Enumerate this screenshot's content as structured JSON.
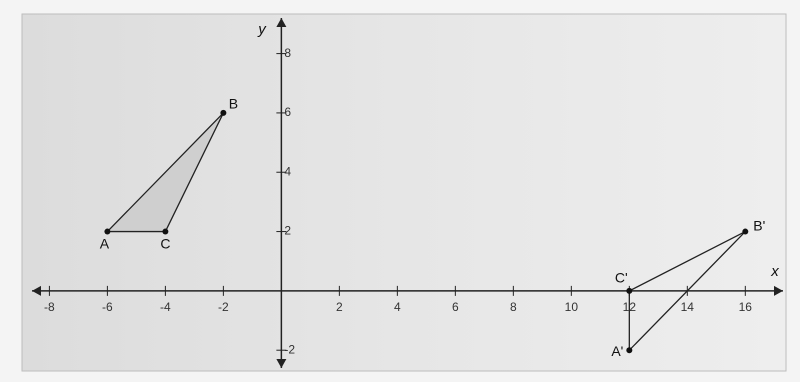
{
  "chart_data": {
    "type": "triangles",
    "x_label": "x",
    "y_label": "y",
    "xlim": [
      -8.6,
      17.3
    ],
    "ylim": [
      -2.6,
      9.2
    ],
    "xticks": [
      -8,
      -6,
      -4,
      -2,
      2,
      4,
      6,
      8,
      10,
      12,
      14,
      16
    ],
    "yticks": [
      -2,
      2,
      4,
      6,
      8
    ],
    "series": [
      {
        "labels": [
          "A",
          "B",
          "C"
        ],
        "x": [
          -6,
          -2,
          -4
        ],
        "values": [
          2,
          6,
          2
        ],
        "color": "#222222",
        "fill": "#cfcfcf"
      },
      {
        "labels": [
          "A'",
          "B'",
          "C'"
        ],
        "x": [
          12,
          16,
          12
        ],
        "values": [
          -2,
          2,
          0
        ],
        "color": "#222222",
        "fill": "none"
      }
    ]
  }
}
